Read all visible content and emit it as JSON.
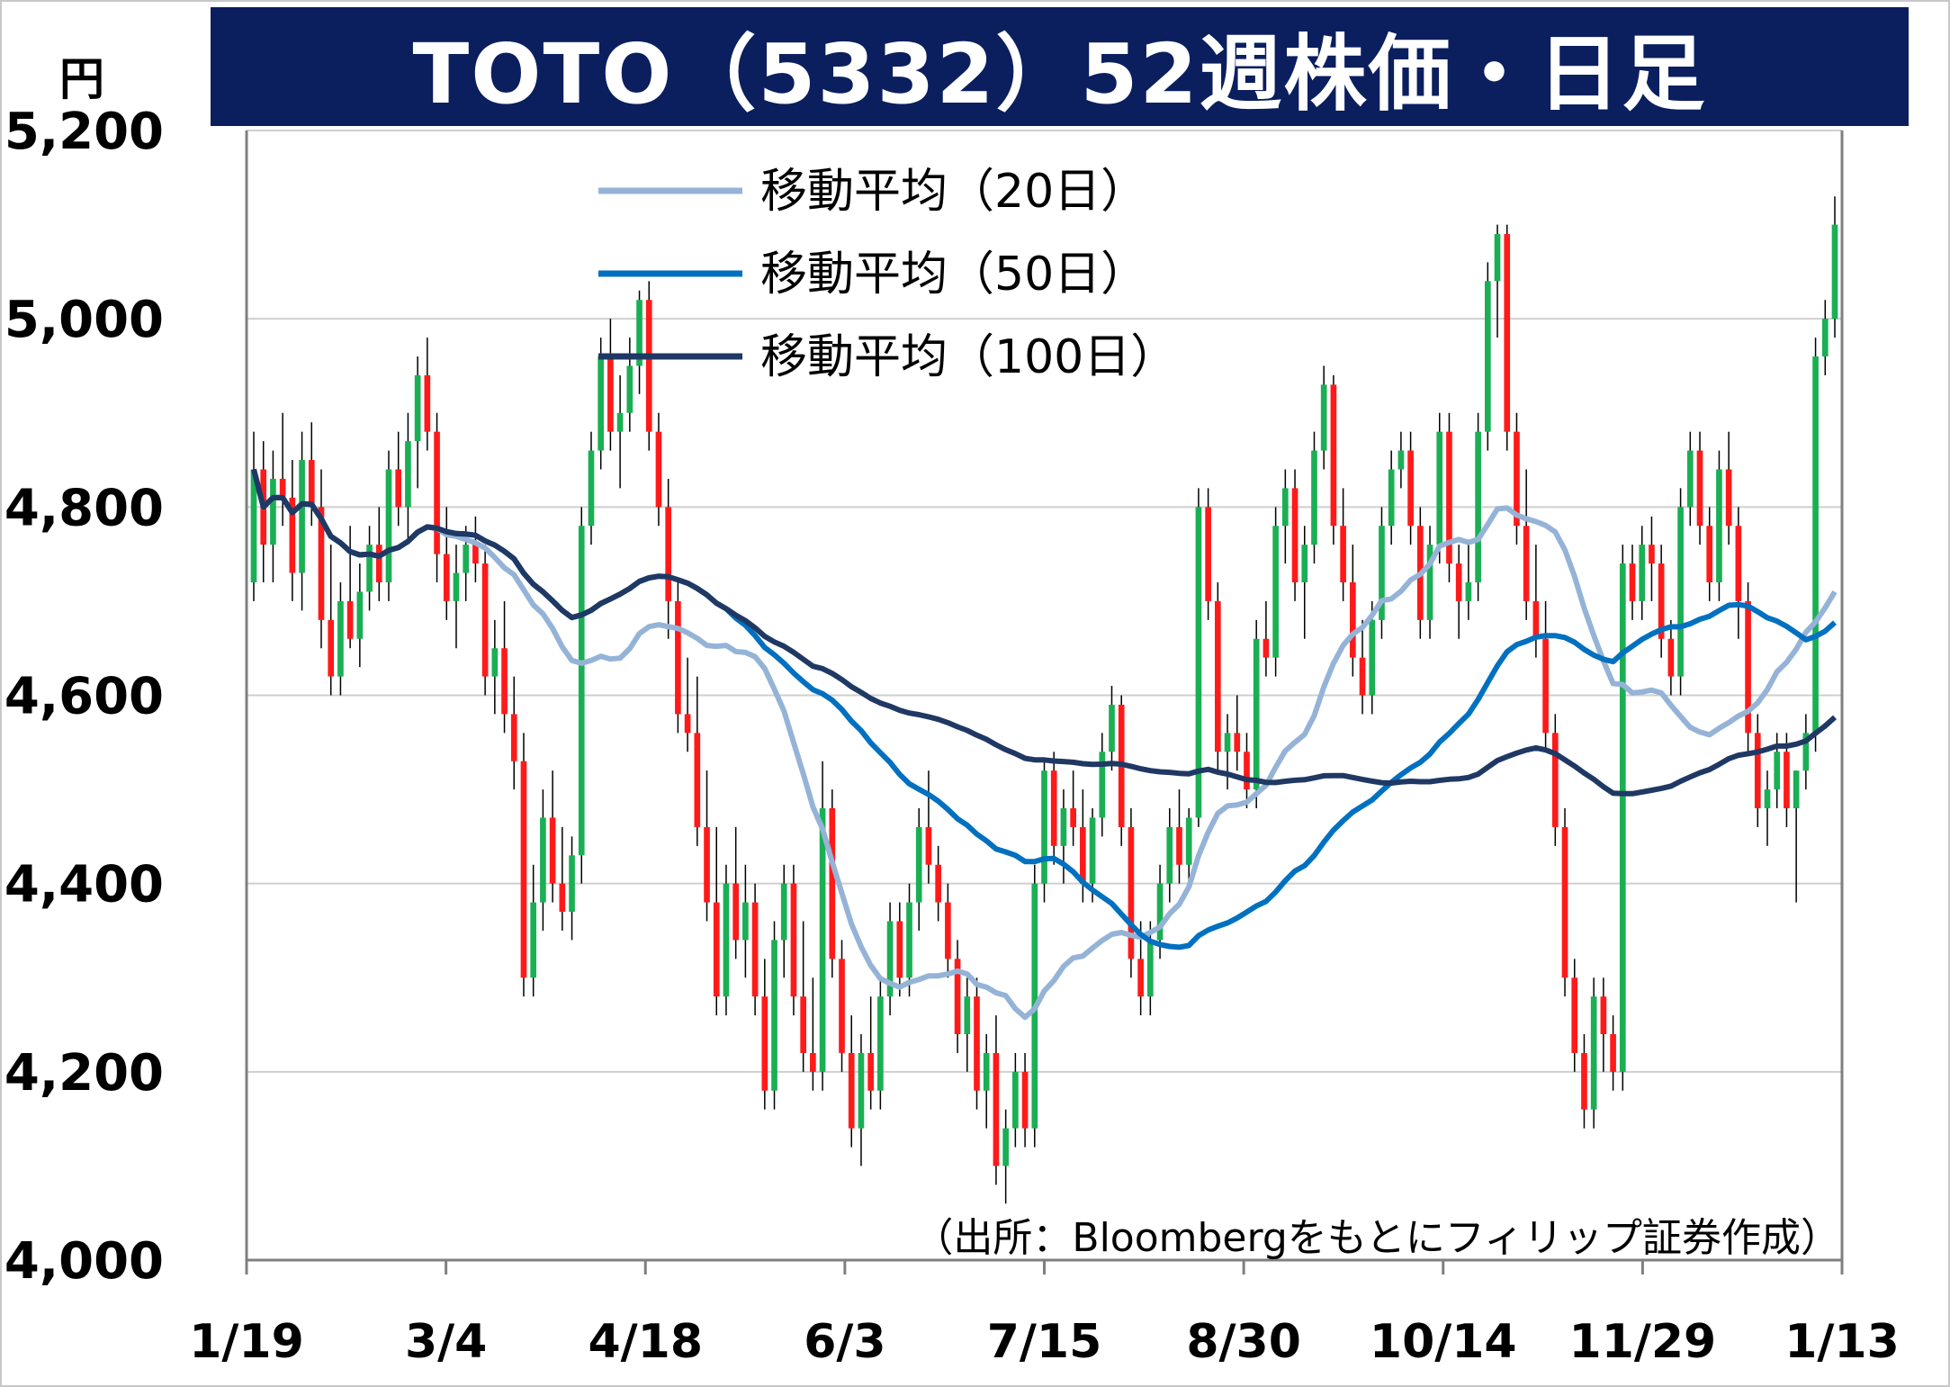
{
  "title": "TOTO（5332）52週株価・日足",
  "y_unit": "円",
  "source_note": "（出所：Bloombergをもとにフィリップ証券作成）",
  "colors": {
    "title_bg": "#0b1f5e",
    "up": "#1aaf54",
    "down": "#ff1a1a",
    "ma20": "#95b3d7",
    "ma50": "#0070c0",
    "ma100": "#1f3864",
    "grid": "#cfcfcf",
    "axis": "#7f7f7f"
  },
  "chart_data": {
    "type": "candlestick",
    "ylim": [
      4000,
      5200
    ],
    "yticks": [
      {
        "value": 4000,
        "label": "4,000"
      },
      {
        "value": 4200,
        "label": "4,200"
      },
      {
        "value": 4400,
        "label": "4,400"
      },
      {
        "value": 4600,
        "label": "4,600"
      },
      {
        "value": 4800,
        "label": "4,800"
      },
      {
        "value": 5000,
        "label": "5,000"
      },
      {
        "value": 5200,
        "label": "5,200"
      }
    ],
    "grid": true,
    "xticks": [
      "1/19",
      "3/4",
      "4/18",
      "6/3",
      "7/15",
      "8/30",
      "10/14",
      "11/29",
      "1/13"
    ],
    "legend": {
      "placement": "top-center",
      "entries": [
        {
          "label": "移動平均（20日）",
          "color": "#95b3d7"
        },
        {
          "label": "移動平均（50日）",
          "color": "#0070c0"
        },
        {
          "label": "移動平均（100日）",
          "color": "#1f3864"
        }
      ]
    },
    "candles": [
      [
        4720,
        4880,
        4700,
        4840
      ],
      [
        4840,
        4870,
        4720,
        4760
      ],
      [
        4760,
        4860,
        4720,
        4830
      ],
      [
        4830,
        4900,
        4780,
        4810
      ],
      [
        4810,
        4850,
        4700,
        4730
      ],
      [
        4730,
        4880,
        4690,
        4850
      ],
      [
        4850,
        4890,
        4780,
        4800
      ],
      [
        4800,
        4840,
        4650,
        4680
      ],
      [
        4680,
        4760,
        4600,
        4620
      ],
      [
        4620,
        4720,
        4600,
        4700
      ],
      [
        4700,
        4780,
        4650,
        4660
      ],
      [
        4660,
        4740,
        4630,
        4710
      ],
      [
        4710,
        4780,
        4690,
        4760
      ],
      [
        4760,
        4800,
        4700,
        4720
      ],
      [
        4720,
        4860,
        4700,
        4840
      ],
      [
        4840,
        4880,
        4780,
        4800
      ],
      [
        4800,
        4900,
        4760,
        4870
      ],
      [
        4870,
        4960,
        4820,
        4940
      ],
      [
        4940,
        4980,
        4860,
        4880
      ],
      [
        4880,
        4900,
        4720,
        4750
      ],
      [
        4750,
        4800,
        4680,
        4700
      ],
      [
        4700,
        4760,
        4650,
        4730
      ],
      [
        4730,
        4780,
        4700,
        4760
      ],
      [
        4760,
        4790,
        4720,
        4740
      ],
      [
        4740,
        4760,
        4600,
        4620
      ],
      [
        4620,
        4680,
        4580,
        4650
      ],
      [
        4650,
        4700,
        4560,
        4580
      ],
      [
        4580,
        4620,
        4500,
        4530
      ],
      [
        4530,
        4560,
        4280,
        4300
      ],
      [
        4300,
        4420,
        4280,
        4380
      ],
      [
        4380,
        4500,
        4350,
        4470
      ],
      [
        4470,
        4520,
        4380,
        4400
      ],
      [
        4400,
        4460,
        4350,
        4370
      ],
      [
        4370,
        4450,
        4340,
        4430
      ],
      [
        4430,
        4800,
        4400,
        4780
      ],
      [
        4780,
        4880,
        4760,
        4860
      ],
      [
        4860,
        4980,
        4840,
        4960
      ],
      [
        4960,
        5000,
        4860,
        4880
      ],
      [
        4880,
        4940,
        4820,
        4900
      ],
      [
        4900,
        4980,
        4880,
        4950
      ],
      [
        4950,
        5030,
        4920,
        5020
      ],
      [
        5020,
        5040,
        4860,
        4880
      ],
      [
        4880,
        4900,
        4780,
        4800
      ],
      [
        4800,
        4830,
        4660,
        4700
      ],
      [
        4700,
        4720,
        4560,
        4580
      ],
      [
        4580,
        4640,
        4540,
        4560
      ],
      [
        4560,
        4620,
        4440,
        4460
      ],
      [
        4460,
        4520,
        4360,
        4380
      ],
      [
        4380,
        4460,
        4260,
        4280
      ],
      [
        4280,
        4420,
        4260,
        4400
      ],
      [
        4400,
        4460,
        4320,
        4340
      ],
      [
        4340,
        4420,
        4300,
        4380
      ],
      [
        4380,
        4400,
        4260,
        4280
      ],
      [
        4280,
        4320,
        4160,
        4180
      ],
      [
        4180,
        4360,
        4160,
        4340
      ],
      [
        4340,
        4420,
        4300,
        4400
      ],
      [
        4400,
        4420,
        4260,
        4280
      ],
      [
        4280,
        4360,
        4200,
        4220
      ],
      [
        4220,
        4300,
        4180,
        4200
      ],
      [
        4200,
        4530,
        4180,
        4480
      ],
      [
        4480,
        4500,
        4300,
        4320
      ],
      [
        4320,
        4340,
        4200,
        4220
      ],
      [
        4220,
        4260,
        4120,
        4140
      ],
      [
        4140,
        4240,
        4100,
        4220
      ],
      [
        4220,
        4280,
        4160,
        4180
      ],
      [
        4180,
        4300,
        4160,
        4280
      ],
      [
        4280,
        4380,
        4260,
        4360
      ],
      [
        4360,
        4380,
        4280,
        4300
      ],
      [
        4300,
        4400,
        4280,
        4380
      ],
      [
        4380,
        4480,
        4350,
        4460
      ],
      [
        4460,
        4520,
        4400,
        4420
      ],
      [
        4420,
        4440,
        4360,
        4380
      ],
      [
        4380,
        4400,
        4300,
        4320
      ],
      [
        4320,
        4340,
        4220,
        4240
      ],
      [
        4240,
        4300,
        4200,
        4280
      ],
      [
        4280,
        4300,
        4160,
        4180
      ],
      [
        4180,
        4240,
        4140,
        4220
      ],
      [
        4220,
        4260,
        4080,
        4100
      ],
      [
        4100,
        4160,
        4060,
        4140
      ],
      [
        4140,
        4220,
        4120,
        4200
      ],
      [
        4200,
        4220,
        4120,
        4140
      ],
      [
        4140,
        4420,
        4120,
        4400
      ],
      [
        4400,
        4530,
        4380,
        4520
      ],
      [
        4520,
        4540,
        4420,
        4440
      ],
      [
        4440,
        4500,
        4400,
        4480
      ],
      [
        4480,
        4520,
        4440,
        4460
      ],
      [
        4460,
        4500,
        4380,
        4400
      ],
      [
        4400,
        4480,
        4380,
        4470
      ],
      [
        4470,
        4560,
        4450,
        4540
      ],
      [
        4540,
        4610,
        4520,
        4590
      ],
      [
        4590,
        4600,
        4440,
        4460
      ],
      [
        4460,
        4480,
        4300,
        4320
      ],
      [
        4320,
        4360,
        4260,
        4280
      ],
      [
        4280,
        4360,
        4260,
        4340
      ],
      [
        4340,
        4420,
        4320,
        4400
      ],
      [
        4400,
        4480,
        4380,
        4460
      ],
      [
        4460,
        4500,
        4400,
        4420
      ],
      [
        4420,
        4480,
        4400,
        4470
      ],
      [
        4470,
        4820,
        4460,
        4800
      ],
      [
        4800,
        4820,
        4680,
        4700
      ],
      [
        4700,
        4720,
        4520,
        4540
      ],
      [
        4540,
        4580,
        4500,
        4560
      ],
      [
        4560,
        4600,
        4520,
        4540
      ],
      [
        4540,
        4560,
        4480,
        4500
      ],
      [
        4500,
        4680,
        4480,
        4660
      ],
      [
        4660,
        4700,
        4620,
        4640
      ],
      [
        4640,
        4800,
        4620,
        4780
      ],
      [
        4780,
        4840,
        4740,
        4820
      ],
      [
        4820,
        4840,
        4700,
        4720
      ],
      [
        4720,
        4780,
        4660,
        4760
      ],
      [
        4760,
        4880,
        4740,
        4860
      ],
      [
        4860,
        4950,
        4840,
        4930
      ],
      [
        4930,
        4940,
        4760,
        4780
      ],
      [
        4780,
        4820,
        4700,
        4720
      ],
      [
        4720,
        4760,
        4620,
        4640
      ],
      [
        4640,
        4680,
        4580,
        4600
      ],
      [
        4600,
        4700,
        4580,
        4680
      ],
      [
        4680,
        4800,
        4660,
        4780
      ],
      [
        4780,
        4860,
        4760,
        4840
      ],
      [
        4840,
        4880,
        4820,
        4860
      ],
      [
        4860,
        4880,
        4760,
        4780
      ],
      [
        4780,
        4800,
        4660,
        4680
      ],
      [
        4680,
        4780,
        4660,
        4760
      ],
      [
        4760,
        4900,
        4740,
        4880
      ],
      [
        4880,
        4900,
        4720,
        4740
      ],
      [
        4740,
        4760,
        4660,
        4700
      ],
      [
        4700,
        4760,
        4680,
        4720
      ],
      [
        4720,
        4900,
        4700,
        4880
      ],
      [
        4880,
        5060,
        4860,
        5040
      ],
      [
        5040,
        5100,
        4980,
        5090
      ],
      [
        5090,
        5100,
        4860,
        4880
      ],
      [
        4880,
        4900,
        4760,
        4780
      ],
      [
        4780,
        4840,
        4680,
        4700
      ],
      [
        4700,
        4760,
        4640,
        4660
      ],
      [
        4660,
        4700,
        4540,
        4560
      ],
      [
        4560,
        4580,
        4440,
        4460
      ],
      [
        4460,
        4480,
        4280,
        4300
      ],
      [
        4300,
        4320,
        4200,
        4220
      ],
      [
        4220,
        4240,
        4140,
        4160
      ],
      [
        4160,
        4300,
        4140,
        4280
      ],
      [
        4280,
        4300,
        4200,
        4240
      ],
      [
        4240,
        4260,
        4180,
        4200
      ],
      [
        4200,
        4760,
        4180,
        4740
      ],
      [
        4740,
        4760,
        4680,
        4700
      ],
      [
        4700,
        4780,
        4680,
        4760
      ],
      [
        4760,
        4790,
        4700,
        4740
      ],
      [
        4740,
        4760,
        4640,
        4660
      ],
      [
        4660,
        4680,
        4600,
        4620
      ],
      [
        4620,
        4820,
        4600,
        4800
      ],
      [
        4800,
        4880,
        4780,
        4860
      ],
      [
        4860,
        4880,
        4760,
        4780
      ],
      [
        4780,
        4800,
        4700,
        4720
      ],
      [
        4720,
        4860,
        4700,
        4840
      ],
      [
        4840,
        4880,
        4760,
        4780
      ],
      [
        4780,
        4800,
        4660,
        4700
      ],
      [
        4700,
        4720,
        4540,
        4560
      ],
      [
        4560,
        4580,
        4460,
        4480
      ],
      [
        4480,
        4520,
        4440,
        4500
      ],
      [
        4500,
        4560,
        4480,
        4540
      ],
      [
        4540,
        4560,
        4460,
        4480
      ],
      [
        4480,
        4520,
        4380,
        4520
      ],
      [
        4520,
        4580,
        4500,
        4560
      ],
      [
        4560,
        4980,
        4540,
        4960
      ],
      [
        4960,
        5020,
        4940,
        5000
      ],
      [
        5000,
        5130,
        4980,
        5100
      ]
    ]
  }
}
